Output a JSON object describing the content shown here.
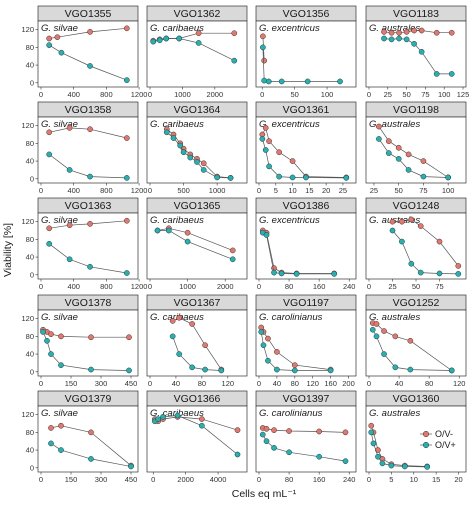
{
  "chart_data": {
    "type": "scatter",
    "ylabel": "Viability [%]",
    "xlabel": "Cells eq mL⁻¹",
    "series_names": [
      "O/V-",
      "O/V+"
    ],
    "colors": {
      "O/V-": "#e8756b",
      "O/V+": "#1fb3b3"
    },
    "legend": "inside-bottom-right",
    "grid": false,
    "rows": [
      {
        "y_ticks": [
          0,
          40,
          80,
          120
        ],
        "ylim": [
          -5,
          135
        ]
      },
      {
        "y_ticks": [
          0,
          40,
          80,
          120
        ],
        "ylim": [
          -5,
          135
        ]
      },
      {
        "y_ticks": [
          0,
          40,
          80,
          120
        ],
        "ylim": [
          -5,
          135
        ]
      },
      {
        "y_ticks": [
          0,
          40,
          80,
          120
        ],
        "ylim": [
          -5,
          135
        ]
      },
      {
        "y_ticks": [
          0,
          40,
          80,
          120
        ],
        "ylim": [
          -5,
          135
        ]
      }
    ],
    "panels": [
      {
        "strip": "VGO1355",
        "species": "G. silvae",
        "xlim": [
          0,
          1150
        ],
        "x_ticks": [
          0,
          400,
          800,
          1200
        ],
        "series": [
          {
            "name": "O/V-",
            "x": [
              100,
              200,
              600,
              1050
            ],
            "y": [
              100,
              103,
              115,
              123
            ]
          },
          {
            "name": "O/V+",
            "x": [
              100,
              250,
              600,
              1050
            ],
            "y": [
              85,
              68,
              38,
              6
            ]
          }
        ]
      },
      {
        "strip": "VGO1362",
        "species": "G. caribaeus",
        "xlim": [
          0,
          2900
        ],
        "x_ticks": [
          0,
          1000,
          2000
        ],
        "series": [
          {
            "name": "O/V-",
            "x": [
              100,
              300,
              500,
              900,
              1500,
              2600
            ],
            "y": [
              95,
              98,
              100,
              100,
              112,
              112
            ]
          },
          {
            "name": "O/V+",
            "x": [
              100,
              300,
              500,
              900,
              1500,
              2600
            ],
            "y": [
              93,
              96,
              100,
              100,
              90,
              50
            ]
          }
        ]
      },
      {
        "strip": "VGO1356",
        "species": "G. excentricus",
        "xlim": [
          -5,
          140
        ],
        "x_ticks": [
          0,
          50,
          100
        ],
        "series": [
          {
            "name": "O/V-",
            "x": [
              1,
              3
            ],
            "y": [
              105,
              50
            ]
          },
          {
            "name": "O/V+",
            "x": [
              1,
              3,
              10,
              30,
              70,
              120
            ],
            "y": [
              80,
              5,
              3,
              3,
              3,
              3
            ]
          }
        ]
      },
      {
        "strip": "VGO1183",
        "species": "G. australes",
        "xlim": [
          0,
          125
        ],
        "x_ticks": [
          0,
          25,
          50,
          75,
          100,
          125
        ],
        "series": [
          {
            "name": "O/V-",
            "x": [
              20,
              30,
              40,
              50,
              60,
              70,
              90,
              110
            ],
            "y": [
              115,
              113,
              113,
              115,
              118,
              118,
              113,
              113
            ]
          },
          {
            "name": "O/V+",
            "x": [
              20,
              30,
              40,
              50,
              60,
              70,
              90,
              110
            ],
            "y": [
              100,
              98,
              100,
              98,
              88,
              70,
              20,
              20
            ]
          }
        ]
      },
      {
        "strip": "VGO1358",
        "species": "G. silvae",
        "xlim": [
          0,
          1150
        ],
        "x_ticks": [
          0,
          400,
          800,
          1200
        ],
        "series": [
          {
            "name": "O/V-",
            "x": [
              100,
              350,
              600,
              1050
            ],
            "y": [
              105,
              115,
              112,
              92
            ]
          },
          {
            "name": "O/V+",
            "x": [
              100,
              350,
              600,
              1050
            ],
            "y": [
              55,
              20,
              5,
              2
            ]
          }
        ]
      },
      {
        "strip": "VGO1364",
        "species": "G. caribaeus",
        "xlim": [
          0,
          1400
        ],
        "x_ticks": [
          0,
          500,
          1000
        ],
        "series": [
          {
            "name": "O/V-",
            "x": [
              250,
              350,
              450,
              500,
              600,
              700,
              800,
              1000,
              1200
            ],
            "y": [
              112,
              100,
              80,
              68,
              55,
              45,
              35,
              5,
              2
            ]
          },
          {
            "name": "O/V+",
            "x": [
              250,
              350,
              450,
              500,
              600,
              700,
              800,
              1000,
              1200
            ],
            "y": [
              105,
              92,
              75,
              60,
              48,
              38,
              20,
              3,
              2
            ]
          }
        ]
      },
      {
        "strip": "VGO1361",
        "species": "G. excentricus",
        "xlim": [
          0,
          28
        ],
        "x_ticks": [
          0,
          5,
          10,
          15,
          20,
          25
        ],
        "series": [
          {
            "name": "O/V-",
            "x": [
              1,
              2,
              3,
              6,
              10,
              14,
              26
            ],
            "y": [
              100,
              115,
              85,
              60,
              40,
              5,
              3
            ]
          },
          {
            "name": "O/V+",
            "x": [
              1,
              2,
              3,
              6,
              10,
              14,
              26
            ],
            "y": [
              90,
              65,
              28,
              5,
              3,
              3,
              2
            ]
          }
        ]
      },
      {
        "strip": "VGO1198",
        "species": "G. australes",
        "xlim": [
          20,
          115
        ],
        "x_ticks": [
          25,
          50,
          75,
          100
        ],
        "series": [
          {
            "name": "O/V-",
            "x": [
              30,
              40,
              50,
              60,
              75,
              100
            ],
            "y": [
              118,
              85,
              70,
              55,
              40,
              3
            ]
          },
          {
            "name": "O/V+",
            "x": [
              30,
              40,
              50,
              60,
              75,
              100
            ],
            "y": [
              90,
              58,
              45,
              20,
              5,
              3
            ]
          }
        ]
      },
      {
        "strip": "VGO1363",
        "species": "G. silvae",
        "xlim": [
          0,
          1150
        ],
        "x_ticks": [
          0,
          400,
          800,
          1200
        ],
        "series": [
          {
            "name": "O/V-",
            "x": [
              100,
              350,
              600,
              1050
            ],
            "y": [
              105,
              112,
              115,
              122
            ]
          },
          {
            "name": "O/V+",
            "x": [
              100,
              350,
              600,
              1050
            ],
            "y": [
              70,
              35,
              18,
              4
            ]
          }
        ]
      },
      {
        "strip": "VGO1365",
        "species": "G. caribaeus",
        "xlim": [
          0,
          2500
        ],
        "x_ticks": [
          0,
          1000,
          2000
        ],
        "series": [
          {
            "name": "O/V-",
            "x": [
              200,
              500,
              1000,
              2200
            ],
            "y": [
              100,
              105,
              95,
              55
            ]
          },
          {
            "name": "O/V+",
            "x": [
              200,
              500,
              1000,
              2200
            ],
            "y": [
              100,
              100,
              75,
              35
            ]
          }
        ]
      },
      {
        "strip": "VGO1386",
        "species": "G. excentricus",
        "xlim": [
          0,
          250
        ],
        "x_ticks": [
          0,
          80,
          160,
          240
        ],
        "series": [
          {
            "name": "O/V-",
            "x": [
              10,
              20,
              40,
              60,
              100,
              200
            ],
            "y": [
              100,
              95,
              15,
              5,
              3,
              3
            ]
          },
          {
            "name": "O/V+",
            "x": [
              10,
              20,
              40,
              60,
              100,
              200
            ],
            "y": [
              95,
              90,
              5,
              3,
              2,
              2
            ]
          }
        ]
      },
      {
        "strip": "VGO1248",
        "species": "G. australes",
        "xlim": [
          0,
          100
        ],
        "x_ticks": [
          0,
          25,
          50,
          75
        ],
        "series": [
          {
            "name": "O/V-",
            "x": [
              25,
              35,
              45,
              55,
              75,
              95
            ],
            "y": [
              120,
              120,
              125,
              110,
              75,
              20
            ]
          },
          {
            "name": "O/V+",
            "x": [
              25,
              35,
              45,
              55,
              75,
              95
            ],
            "y": [
              100,
              75,
              25,
              5,
              3,
              2
            ]
          }
        ]
      },
      {
        "strip": "VGO1378",
        "species": "G. silvae",
        "xlim": [
          0,
          470
        ],
        "x_ticks": [
          0,
          150,
          300,
          450
        ],
        "series": [
          {
            "name": "O/V-",
            "x": [
              10,
              30,
              50,
              100,
              250,
              440
            ],
            "y": [
              95,
              90,
              85,
              80,
              78,
              78
            ]
          },
          {
            "name": "O/V+",
            "x": [
              10,
              30,
              50,
              100,
              250,
              440
            ],
            "y": [
              90,
              70,
              40,
              15,
              5,
              3
            ]
          }
        ]
      },
      {
        "strip": "VGO1367",
        "species": "G. caribaeus",
        "xlim": [
          0,
          145
        ],
        "x_ticks": [
          0,
          40,
          80,
          120
        ],
        "series": [
          {
            "name": "O/V-",
            "x": [
              35,
              45,
              65,
              85,
              110
            ],
            "y": [
              115,
              122,
              108,
              60,
              5
            ]
          },
          {
            "name": "O/V+",
            "x": [
              35,
              45,
              65,
              85,
              110
            ],
            "y": [
              80,
              40,
              10,
              5,
              3
            ]
          }
        ]
      },
      {
        "strip": "VGO1197",
        "species": "G. carolinianus",
        "xlim": [
          0,
          210
        ],
        "x_ticks": [
          0,
          40,
          80,
          120,
          160,
          200
        ],
        "series": [
          {
            "name": "O/V-",
            "x": [
              5,
              10,
              20,
              40,
              80,
              160
            ],
            "y": [
              100,
              90,
              75,
              45,
              15,
              5
            ]
          },
          {
            "name": "O/V+",
            "x": [
              5,
              10,
              20,
              40,
              80,
              160
            ],
            "y": [
              90,
              60,
              25,
              5,
              3,
              3
            ]
          }
        ]
      },
      {
        "strip": "VGO1252",
        "species": "G. australes",
        "xlim": [
          0,
          125
        ],
        "x_ticks": [
          0,
          40,
          80,
          120
        ],
        "series": [
          {
            "name": "O/V-",
            "x": [
              5,
              10,
              20,
              35,
              55,
              110
            ],
            "y": [
              110,
              108,
              92,
              80,
              70,
              3
            ]
          },
          {
            "name": "O/V+",
            "x": [
              5,
              10,
              20,
              35,
              55,
              110
            ],
            "y": [
              95,
              80,
              40,
              10,
              5,
              3
            ]
          }
        ]
      },
      {
        "strip": "VGO1379",
        "species": "G. silvae",
        "xlim": [
          0,
          470
        ],
        "x_ticks": [
          0,
          150,
          300,
          450
        ],
        "series": [
          {
            "name": "O/V-",
            "x": [
              50,
              100,
              250,
              450
            ],
            "y": [
              90,
              95,
              80,
              5
            ]
          },
          {
            "name": "O/V+",
            "x": [
              50,
              100,
              250,
              450
            ],
            "y": [
              55,
              40,
              20,
              3
            ]
          }
        ]
      },
      {
        "strip": "VGO1366",
        "species": "G. caribaeus",
        "xlim": [
          -200,
          5600
        ],
        "x_ticks": [
          0,
          2000,
          4000
        ],
        "series": [
          {
            "name": "O/V-",
            "x": [
              100,
              300,
              600,
              1500,
              3000,
              5200
            ],
            "y": [
              110,
              105,
              110,
              115,
              110,
              85
            ]
          },
          {
            "name": "O/V+",
            "x": [
              100,
              300,
              600,
              1500,
              3000,
              5200
            ],
            "y": [
              105,
              110,
              115,
              118,
              95,
              30
            ]
          }
        ]
      },
      {
        "strip": "VGO1397",
        "species": "G. carolinianus",
        "xlim": [
          0,
          250
        ],
        "x_ticks": [
          0,
          80,
          160,
          240
        ],
        "series": [
          {
            "name": "O/V-",
            "x": [
              10,
              20,
              40,
              80,
              160,
              230
            ],
            "y": [
              90,
              88,
              85,
              83,
              82,
              80
            ]
          },
          {
            "name": "O/V+",
            "x": [
              10,
              20,
              40,
              80,
              160,
              230
            ],
            "y": [
              75,
              60,
              45,
              35,
              25,
              15
            ]
          }
        ]
      },
      {
        "strip": "VGO1360",
        "species": "G. australes",
        "xlim": [
          0,
          21
        ],
        "x_ticks": [
          0,
          5,
          10,
          15,
          20
        ],
        "series": [
          {
            "name": "O/V-",
            "x": [
              0.5,
              1,
              2,
              3,
              5,
              8,
              13
            ],
            "y": [
              95,
              80,
              40,
              20,
              8,
              5,
              3
            ]
          },
          {
            "name": "O/V+",
            "x": [
              0.5,
              1,
              2,
              3,
              5,
              8,
              13
            ],
            "y": [
              80,
              55,
              25,
              10,
              5,
              3,
              2
            ]
          }
        ]
      }
    ]
  }
}
